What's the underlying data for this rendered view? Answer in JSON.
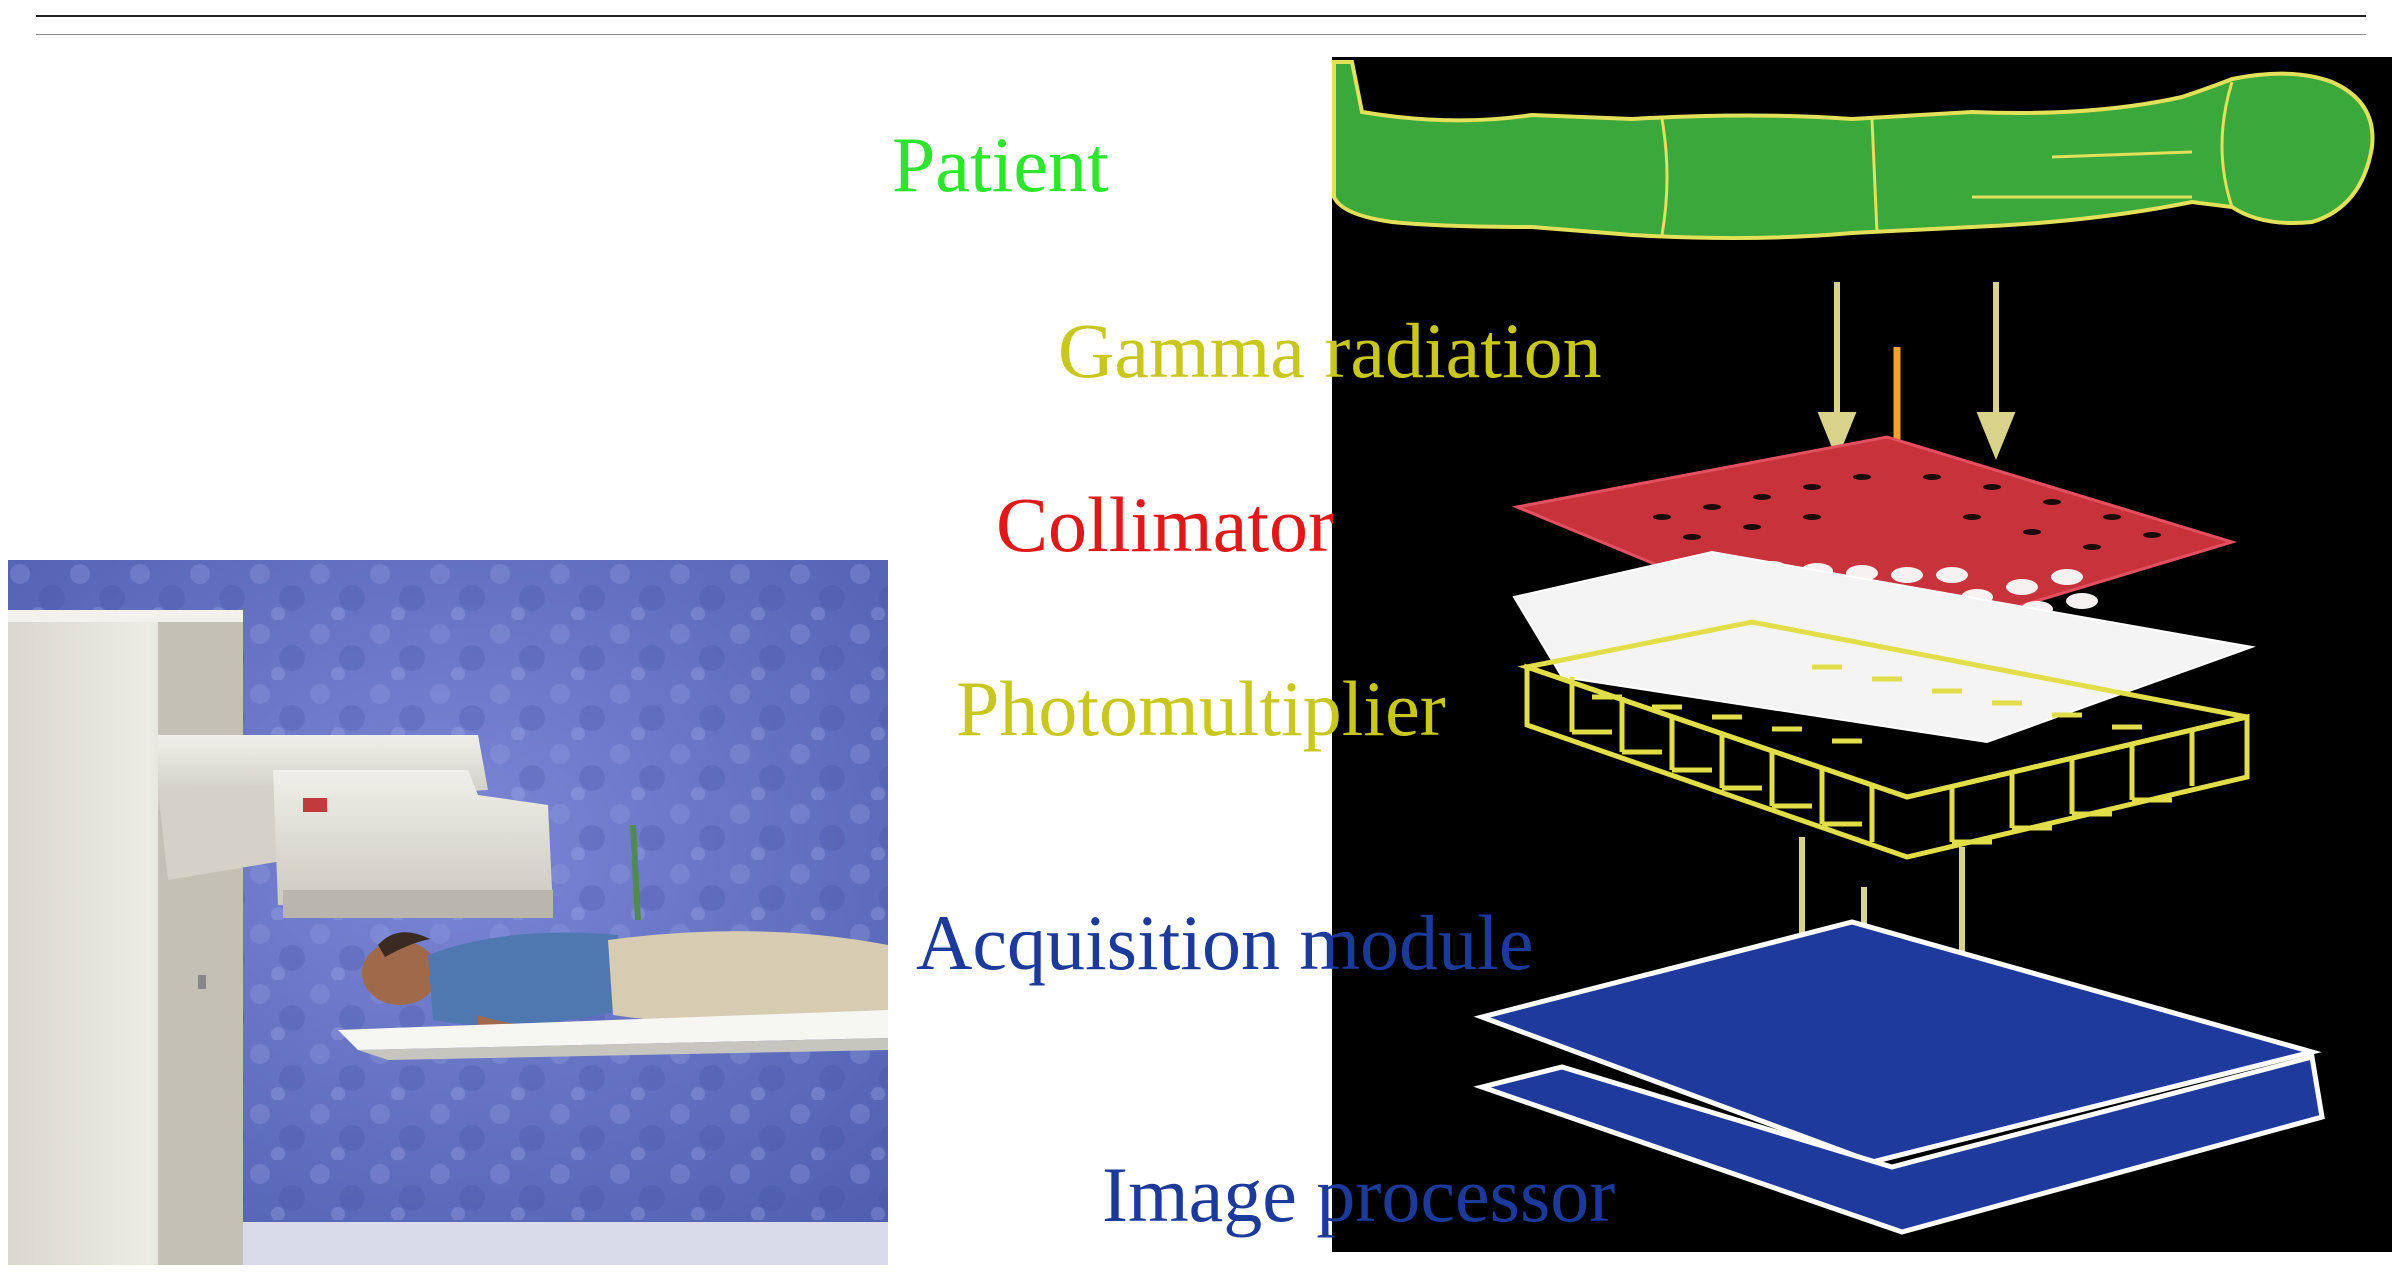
{
  "labels": {
    "patient": "Patient",
    "gamma": "Gamma radiation",
    "collimator": "Collimator",
    "photomultiplier": "Photomultiplier",
    "acquisition": "Acquisition module",
    "image_processor": "Image processor"
  },
  "colors": {
    "patient": "#2de52d",
    "gamma": "#c9c71e",
    "collimator": "#e01818",
    "photomultiplier": "#c9c71e",
    "acquisition": "#1b3a9a",
    "image_processor": "#1b3a9a",
    "diagram_background": "#000000",
    "body_green": "#3aa83a",
    "grid_red": "#c8323a",
    "crystal_white": "#f4f4f4",
    "plate_blue": "#1e3a9c",
    "photo_background": "#5f6fc0"
  },
  "icons": {
    "gamma_camera_photo": "gamma-camera-photo",
    "patient_body": "patient-body-icon",
    "gamma_arrows": "arrow-down-icon",
    "collimator_grid": "collimator-grid-icon",
    "crystal_layer": "scintillation-crystal-icon",
    "photomultiplier_array": "photomultiplier-array-icon",
    "signal_arrows": "arrow-down-icon",
    "acquisition_plate": "acquisition-plate-icon",
    "processor_plate": "processor-plate-icon"
  }
}
